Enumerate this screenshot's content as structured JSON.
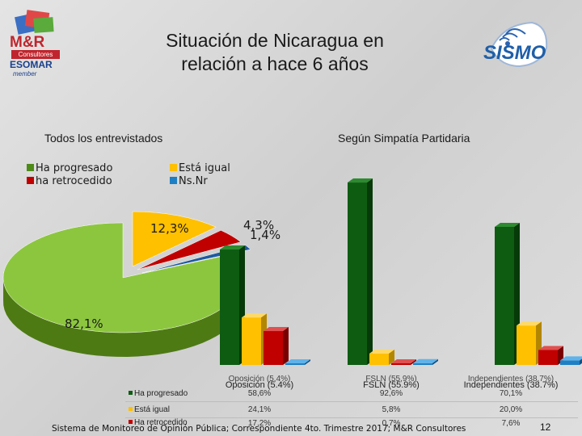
{
  "slide": {
    "title_line1": "Situación de Nicaragua en",
    "title_line2": "relación a hace 6 años",
    "logo_left": {
      "brand": "M&R",
      "sub": "Consultores",
      "org": "ESOMAR",
      "member": "member"
    },
    "logo_right": {
      "brand": "SISMO"
    },
    "footer": "Sistema de Monitoreo de Opinión Pública; Correspondiente 4to. Trimestre 2017; M&R Consultores",
    "page_number": "12"
  },
  "colors": {
    "green": "#4d8a17",
    "green_light": "#8cc63f",
    "yellow": "#ffc000",
    "red": "#c00000",
    "blue": "#1f7fc4",
    "dark_green": "#0e5c12"
  },
  "chart_data": [
    {
      "type": "pie",
      "title": "Todos los entrevistados",
      "legend": [
        "Ha progresado",
        "Está igual",
        "ha retrocedido",
        "Ns.Nr"
      ],
      "slices": [
        {
          "label": "Ha progresado",
          "value": 82.1,
          "display": "82,1%"
        },
        {
          "label": "Está igual",
          "value": 12.3,
          "display": "12,3%"
        },
        {
          "label": "ha retrocedido",
          "value": 4.3,
          "display": "4,3%"
        },
        {
          "label": "Ns.Nr",
          "value": 1.4,
          "display": "1,4%"
        }
      ]
    },
    {
      "type": "bar",
      "title": "Según Simpatía Partidaria",
      "categories": [
        "Oposición (5.4%)",
        "FSLN (55.9%)",
        "Independientes (38.7%)"
      ],
      "category_labels_small": [
        "Oposición (5,4%)",
        "FSLN (55,9%)",
        "Independientes (38,7%)"
      ],
      "ylim": [
        0,
        100
      ],
      "series": [
        {
          "name": "Ha progresado",
          "values": [
            58.6,
            92.6,
            70.1
          ],
          "display": [
            "58,6%",
            "92,6%",
            "70,1%"
          ]
        },
        {
          "name": "Está igual",
          "values": [
            24.1,
            5.8,
            20.0
          ],
          "display": [
            "24,1%",
            "5,8%",
            "20,0%"
          ]
        },
        {
          "name": "Ha retrocedido",
          "values": [
            17.2,
            0.7,
            7.6
          ],
          "display": [
            "17,2%",
            "0,7%",
            "7,6%"
          ]
        },
        {
          "name": "Ns.Nr",
          "values": [
            0,
            0.9,
            2.3
          ]
        }
      ],
      "table_row_labels": [
        "Ha progresado",
        "Está igual",
        "Ha retrocedido"
      ]
    }
  ]
}
